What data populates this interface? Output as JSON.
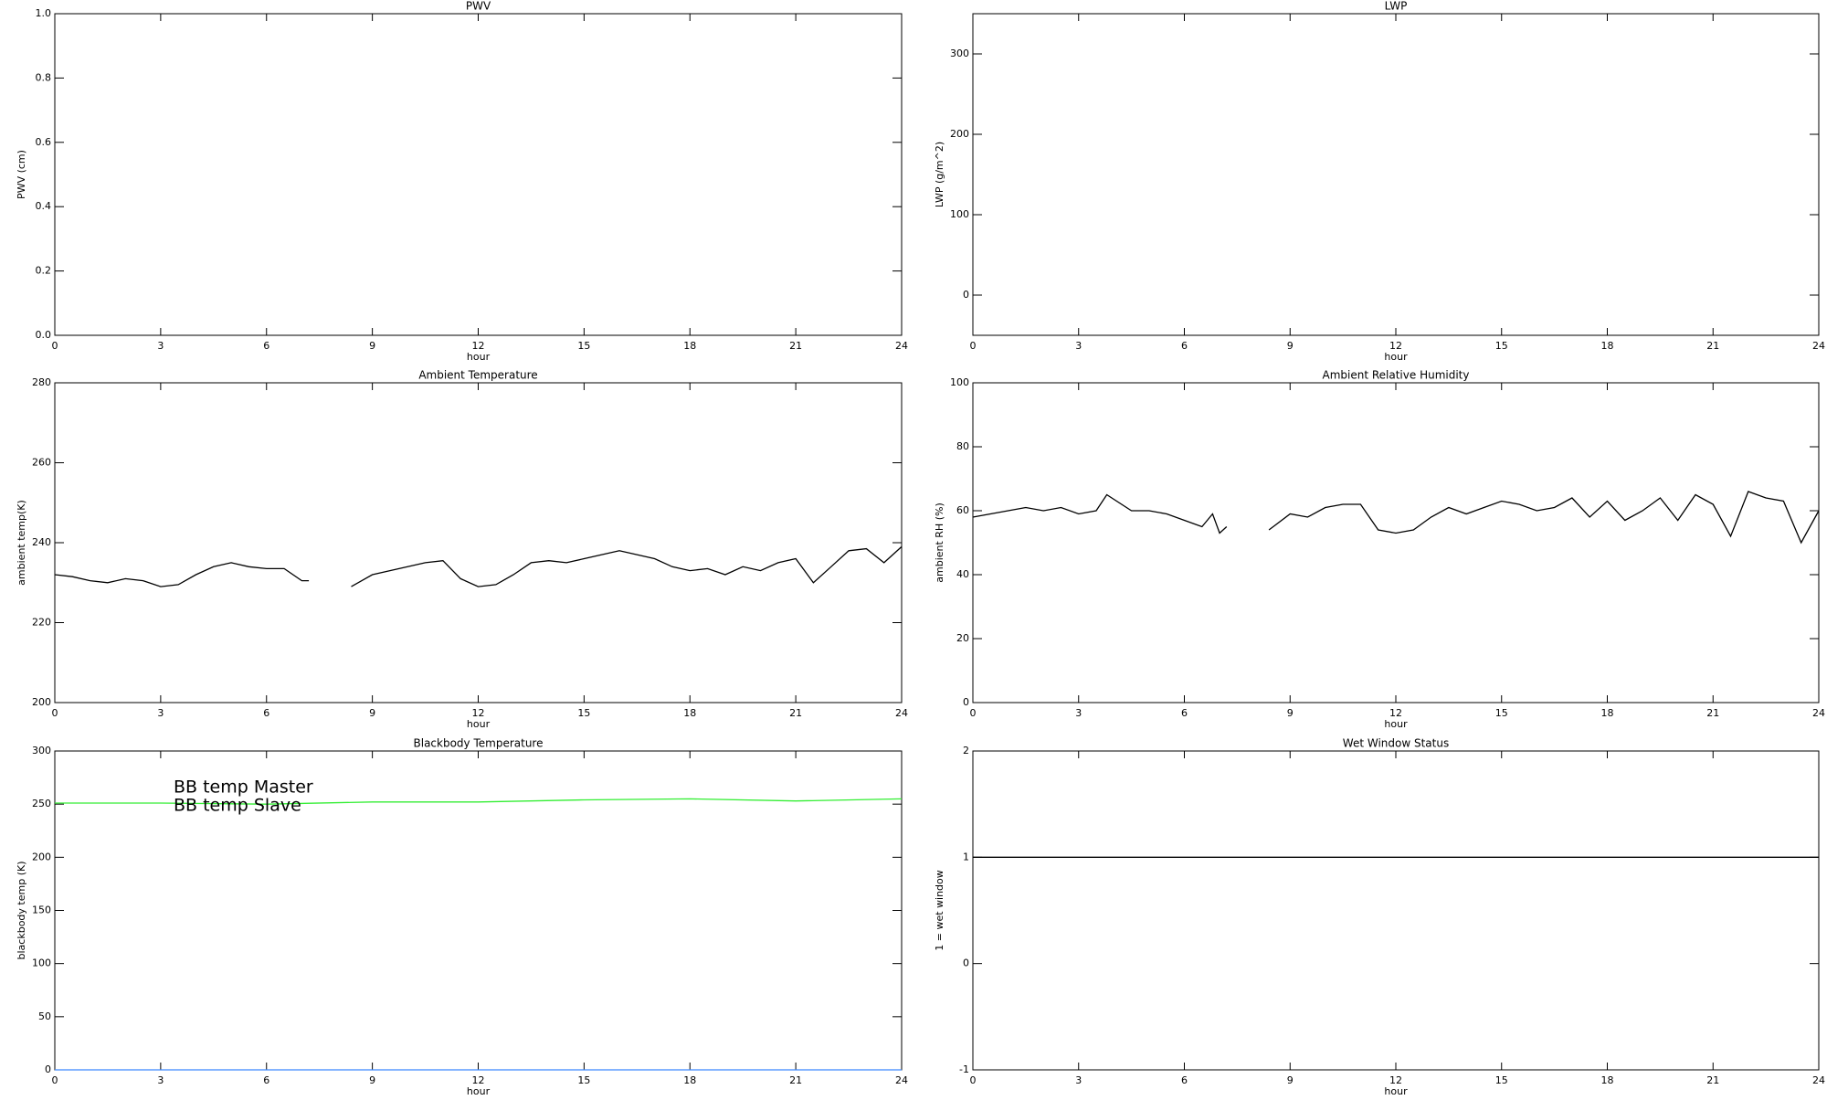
{
  "chart_data": [
    {
      "type": "line",
      "title": "PWV",
      "xlabel": "hour",
      "ylabel": "PWV (cm)",
      "xlim": [
        0,
        24
      ],
      "xticks": [
        0,
        3,
        6,
        9,
        12,
        15,
        18,
        21,
        24
      ],
      "ylim": [
        0,
        1
      ],
      "yticks": [
        {
          "value": 0,
          "label": "0.0"
        },
        0.2,
        0.4,
        0.6,
        0.8,
        {
          "value": 1,
          "label": "1.0"
        }
      ]
    },
    {
      "type": "line",
      "title": "LWP",
      "xlabel": "hour",
      "ylabel": "LWP (g/m^2)",
      "xlim": [
        0,
        24
      ],
      "xticks": [
        0,
        3,
        6,
        9,
        12,
        15,
        18,
        21,
        24
      ],
      "ylim": [
        -50,
        350
      ],
      "yticks": [
        0,
        100,
        200,
        300
      ]
    },
    {
      "type": "line",
      "title": "Ambient Temperature",
      "xlabel": "hour",
      "ylabel": "ambient temp(K)",
      "xlim": [
        0,
        24
      ],
      "xticks": [
        0,
        3,
        6,
        9,
        12,
        15,
        18,
        21,
        24
      ],
      "ylim": [
        200,
        280
      ],
      "yticks": [
        200,
        220,
        240,
        260,
        280
      ],
      "x": [
        0,
        0.5,
        1,
        1.5,
        2,
        2.5,
        3,
        3.5,
        4,
        4.5,
        5,
        5.5,
        6,
        6.5,
        7,
        7.2,
        7.8,
        8.4,
        9,
        9.5,
        10,
        10.5,
        11,
        11.5,
        12,
        12.5,
        13,
        13.5,
        14,
        14.5,
        15,
        15.5,
        16,
        16.5,
        17,
        17.5,
        18,
        18.5,
        19,
        19.5,
        20,
        20.5,
        21,
        21.5,
        22,
        22.5,
        23,
        23.5,
        24
      ],
      "series": [
        {
          "color": "#000000",
          "values": [
            232,
            231.5,
            230.5,
            230,
            231,
            230.5,
            229,
            229.5,
            232,
            234,
            235,
            234,
            233.5,
            233.5,
            230.5,
            230.5,
            null,
            229,
            232,
            233,
            234,
            235,
            235.5,
            231,
            229,
            229.5,
            232,
            235,
            235.5,
            235,
            236,
            237,
            238,
            237,
            236,
            234,
            233,
            233.5,
            232,
            234,
            233,
            235,
            236,
            230,
            234,
            238,
            238.5,
            235,
            239
          ]
        }
      ]
    },
    {
      "type": "line",
      "title": "Ambient Relative Humidity",
      "xlabel": "hour",
      "ylabel": "ambient RH (%)",
      "xlim": [
        0,
        24
      ],
      "xticks": [
        0,
        3,
        6,
        9,
        12,
        15,
        18,
        21,
        24
      ],
      "ylim": [
        0,
        100
      ],
      "yticks": [
        0,
        20,
        40,
        60,
        80,
        100
      ],
      "x": [
        0,
        0.5,
        1,
        1.5,
        2,
        2.5,
        3,
        3.5,
        3.8,
        4.5,
        5,
        5.5,
        6,
        6.5,
        6.8,
        7,
        7.2,
        7.8,
        8.4,
        9,
        9.5,
        10,
        10.5,
        11,
        11.5,
        12,
        12.5,
        13,
        13.5,
        14,
        14.5,
        15,
        15.5,
        16,
        16.5,
        17,
        17.5,
        18,
        18.5,
        19,
        19.5,
        20,
        20.5,
        21,
        21.5,
        22,
        22.5,
        23,
        23.5,
        24
      ],
      "series": [
        {
          "color": "#000000",
          "values": [
            58,
            59,
            60,
            61,
            60,
            61,
            59,
            60,
            65,
            60,
            60,
            59,
            57,
            55,
            59,
            53,
            55,
            null,
            54,
            59,
            58,
            61,
            62,
            62,
            54,
            53,
            54,
            58,
            61,
            59,
            61,
            63,
            62,
            60,
            61,
            64,
            58,
            63,
            57,
            60,
            64,
            57,
            65,
            62,
            52,
            66,
            64,
            63,
            50,
            60
          ]
        }
      ]
    },
    {
      "type": "line",
      "title": "Blackbody Temperature",
      "xlabel": "hour",
      "ylabel": "blackbody temp (K)",
      "xlim": [
        0,
        24
      ],
      "xticks": [
        0,
        3,
        6,
        9,
        12,
        15,
        18,
        21,
        24
      ],
      "ylim": [
        0,
        300
      ],
      "yticks": [
        0,
        50,
        100,
        150,
        200,
        250,
        300
      ],
      "legend": "upper left",
      "x": [
        0,
        3,
        6,
        9,
        12,
        15,
        18,
        21,
        24
      ],
      "series": [
        {
          "name": "BB temp Master",
          "color": "#3a86ff",
          "values": [
            0,
            0,
            0,
            0,
            0,
            0,
            0,
            0,
            0
          ]
        },
        {
          "name": "BB temp Slave",
          "color": "#33ee33",
          "values": [
            251,
            251,
            250,
            252,
            252,
            254,
            255,
            253,
            255
          ]
        }
      ]
    },
    {
      "type": "line",
      "title": "Wet Window Status",
      "xlabel": "hour",
      "ylabel": "1 = wet window",
      "xlim": [
        0,
        24
      ],
      "xticks": [
        0,
        3,
        6,
        9,
        12,
        15,
        18,
        21,
        24
      ],
      "ylim": [
        -1,
        2
      ],
      "yticks": [
        -1,
        0,
        1,
        2
      ],
      "x": [
        0,
        24
      ],
      "series": [
        {
          "color": "#000000",
          "values": [
            1,
            1
          ]
        }
      ]
    }
  ]
}
